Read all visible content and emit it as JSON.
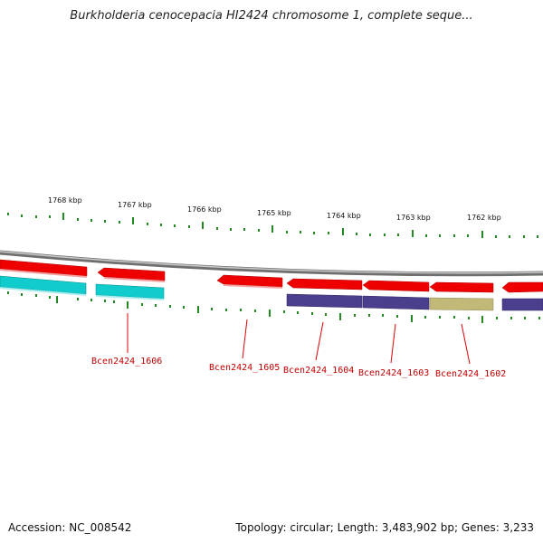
{
  "title": "Burkholderia cenocepacia HI2424 chromosome 1, complete seque...",
  "ticks": [
    "1768 kbp",
    "1767 kbp",
    "1766 kbp",
    "1765 kbp",
    "1764 kbp",
    "1763 kbp",
    "1762 kbp"
  ],
  "gene_labels": [
    "Bcen2424_1606",
    "Bcen2424_1605",
    "Bcen2424_1604",
    "Bcen2424_1603",
    "Bcen2424_1602"
  ],
  "footer": {
    "accession": "Accession: NC_008542",
    "summary": "Topology: circular; Length: 3,483,902 bp; Genes: 3,233"
  },
  "colors": {
    "backbone": "#888888",
    "cds_forward": "#ee0000",
    "cyan": "#11cccc",
    "purple": "#4a3f8c",
    "khaki": "#c2b878",
    "tick": "#228822",
    "label": "#c00000"
  }
}
